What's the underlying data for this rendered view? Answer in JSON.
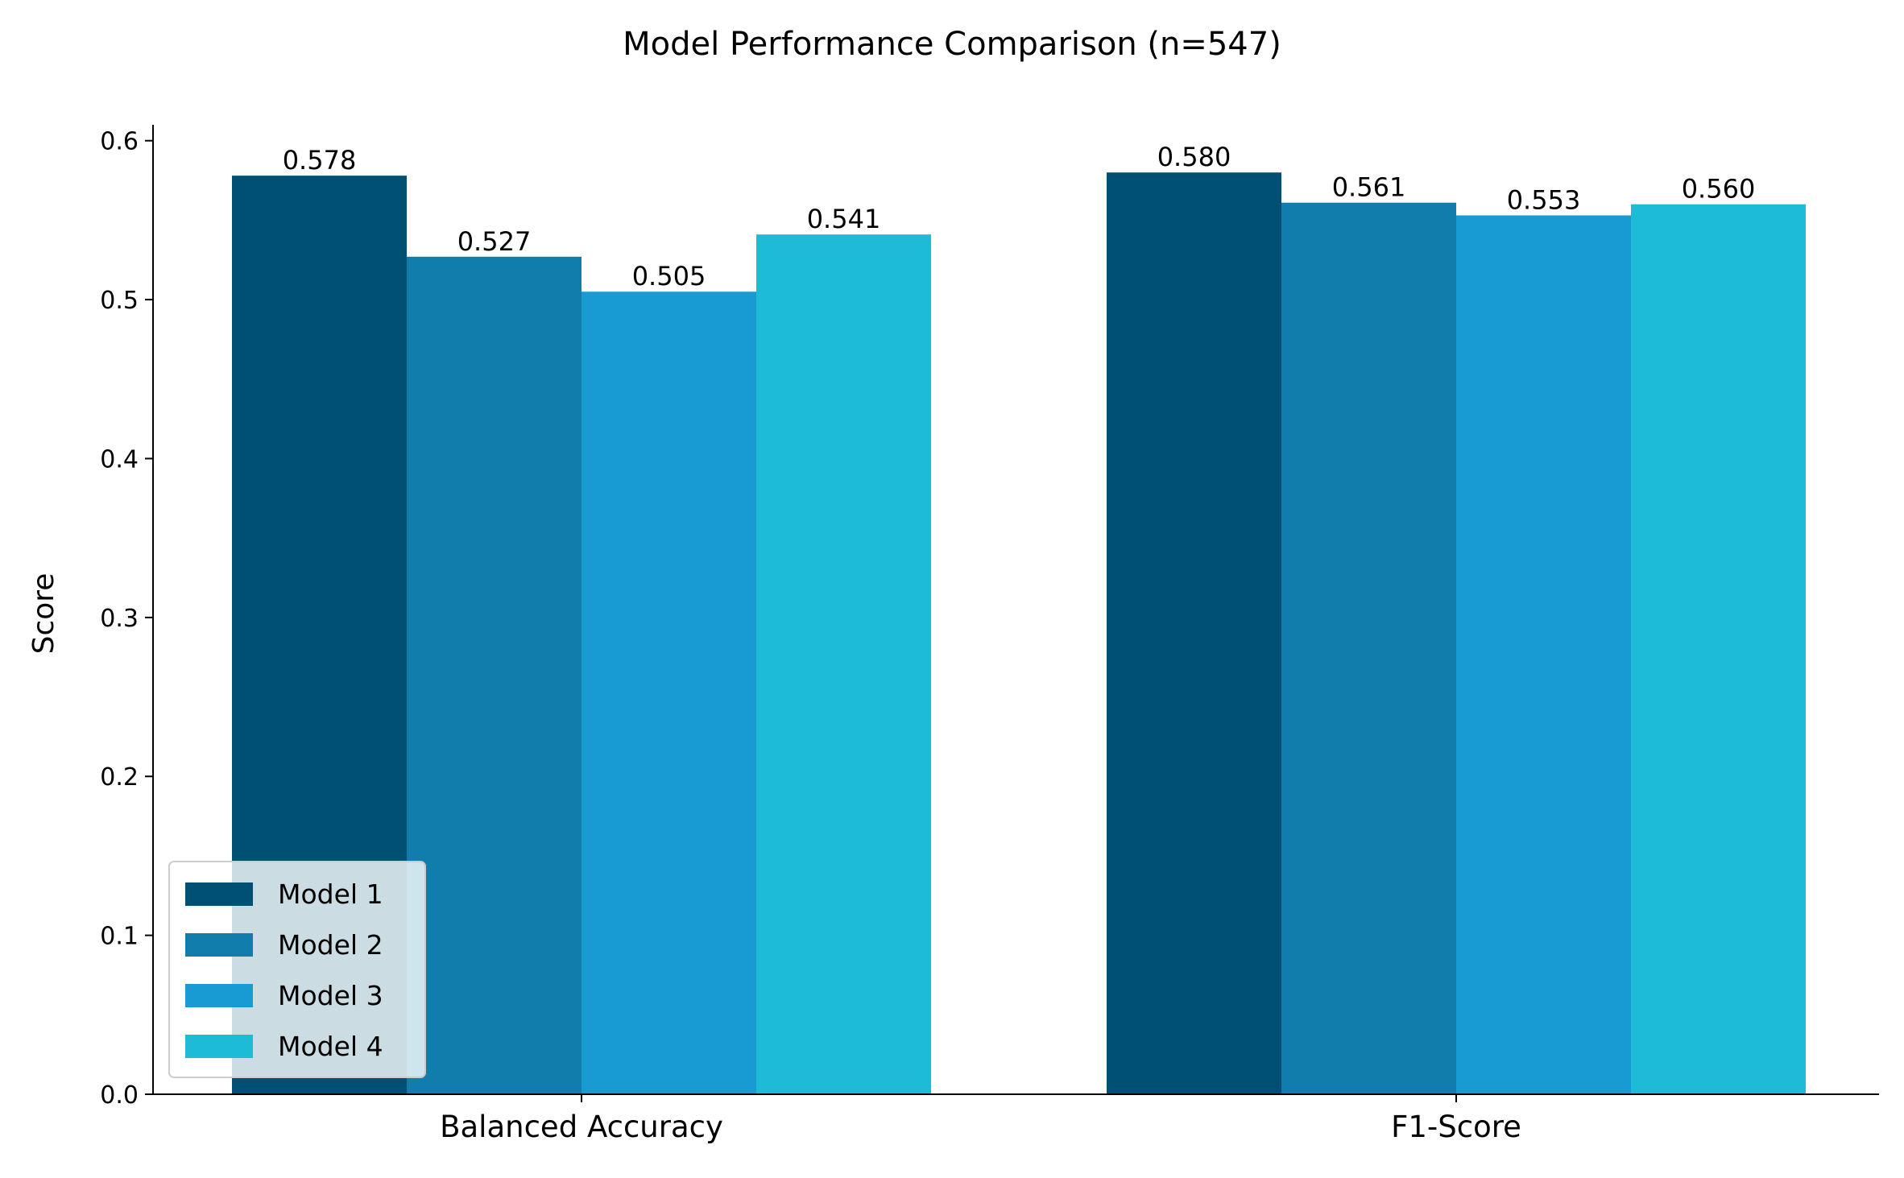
{
  "chart_data": {
    "type": "bar",
    "title": "Model Performance Comparison (n=547)",
    "xlabel": "",
    "ylabel": "Score",
    "ylim": [
      0,
      0.61
    ],
    "yticks": [
      0.0,
      0.1,
      0.2,
      0.3,
      0.4,
      0.5,
      0.6
    ],
    "ytick_labels": [
      "0.0",
      "0.1",
      "0.2",
      "0.3",
      "0.4",
      "0.5",
      "0.6"
    ],
    "categories": [
      "Balanced Accuracy",
      "F1-Score"
    ],
    "series": [
      {
        "name": "Model 1",
        "values": [
          0.578,
          0.58
        ],
        "labels": [
          "0.578",
          "0.580"
        ],
        "color": "#005073"
      },
      {
        "name": "Model 2",
        "values": [
          0.527,
          0.561
        ],
        "labels": [
          "0.527",
          "0.561"
        ],
        "color": "#107dac"
      },
      {
        "name": "Model 3",
        "values": [
          0.505,
          0.553
        ],
        "labels": [
          "0.505",
          "0.553"
        ],
        "color": "#189ad3"
      },
      {
        "name": "Model 4",
        "values": [
          0.541,
          0.56
        ],
        "labels": [
          "0.541",
          "0.560"
        ],
        "color": "#1ebbd7"
      }
    ],
    "legend": {
      "position": "lower-left"
    },
    "grid": false
  }
}
